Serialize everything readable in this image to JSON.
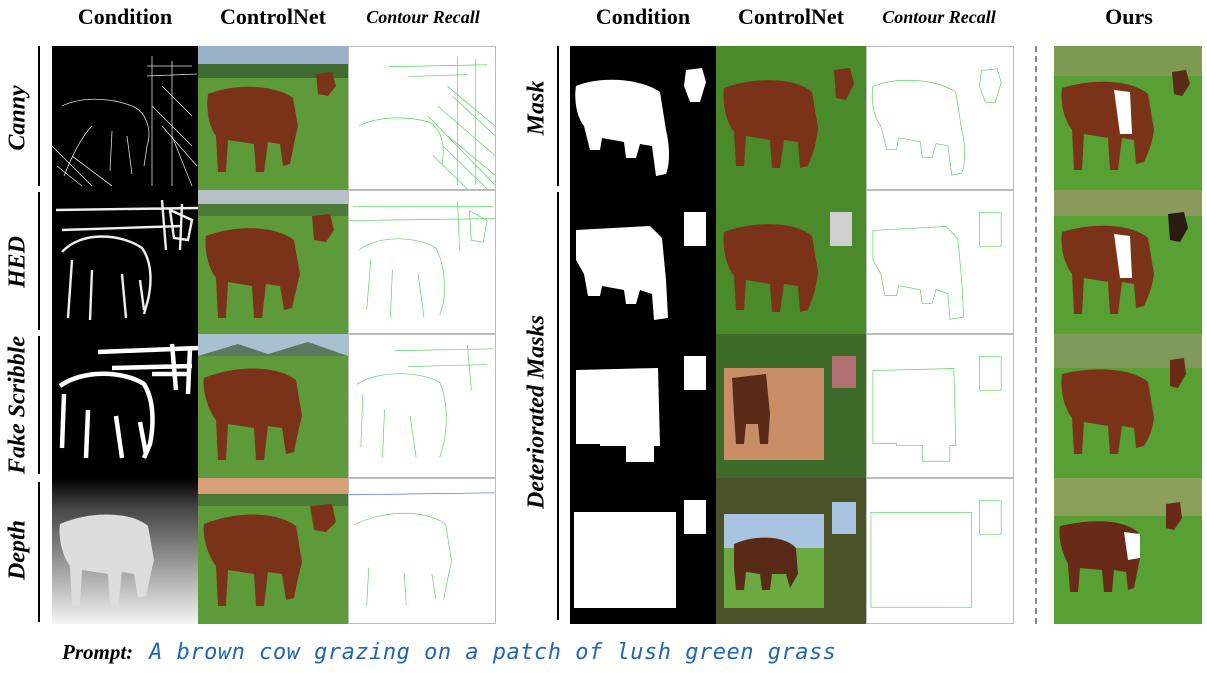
{
  "left_panel": {
    "headers": {
      "condition": "Condition",
      "controlnet": "ControlNet",
      "contour_recall": "Contour Recall"
    },
    "rows": [
      "Canny",
      "HED",
      "Fake Scribble",
      "Depth"
    ]
  },
  "right_panel": {
    "headers": {
      "condition": "Condition",
      "controlnet": "ControlNet",
      "contour_recall": "Contour Recall"
    },
    "rows": [
      "Mask",
      "Deteriorated Masks"
    ]
  },
  "ours": {
    "header": "Ours"
  },
  "prompt": {
    "label": "Prompt:",
    "text": "A brown cow grazing on a patch of lush green grass"
  },
  "colors": {
    "prompt_text": "#1f66b5",
    "contour_green": "#59d35f",
    "grass": "#5a9a35",
    "cow": "#7a3318"
  }
}
